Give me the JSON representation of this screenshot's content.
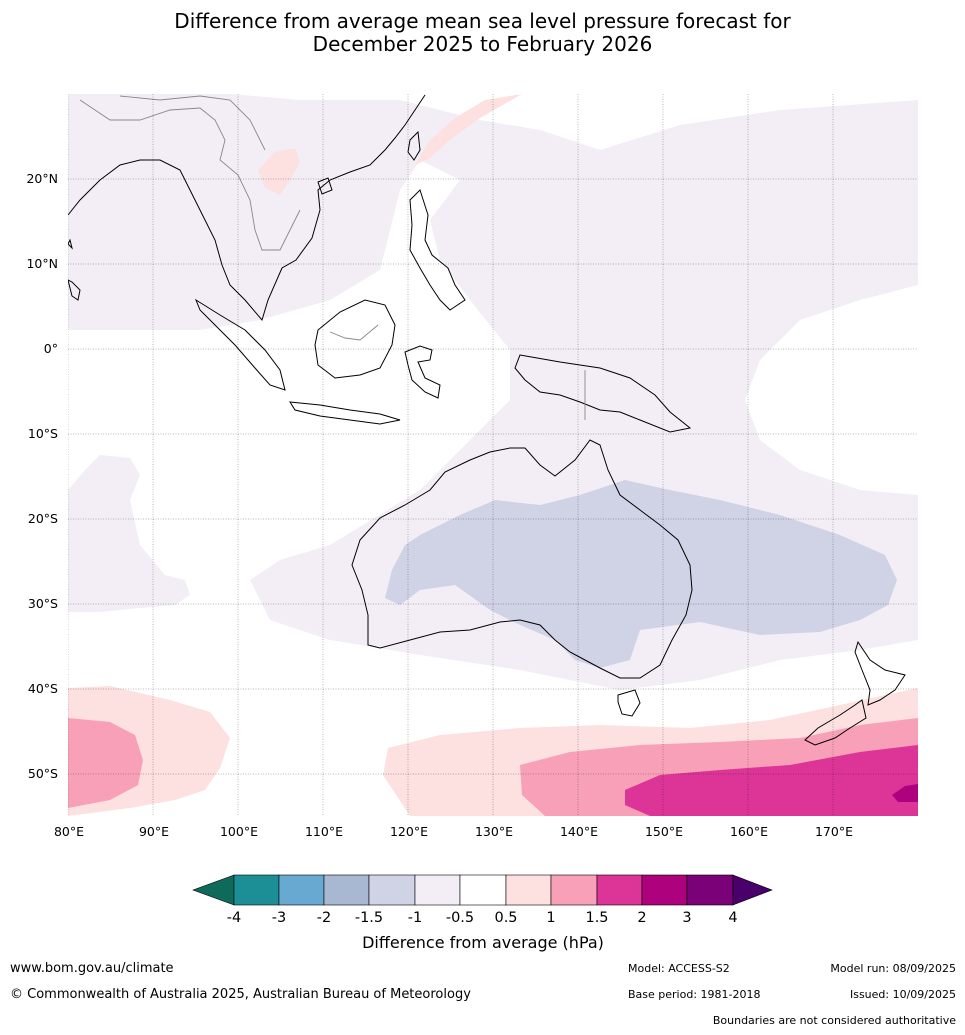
{
  "title": {
    "line1": "Difference from average mean sea level pressure forecast for",
    "line2": "December 2025 to February 2026"
  },
  "map": {
    "lat_labels": [
      "20°N",
      "10°N",
      "0°",
      "10°S",
      "20°S",
      "30°S",
      "40°S",
      "50°S"
    ],
    "lon_labels": [
      "80°E",
      "90°E",
      "100°E",
      "110°E",
      "120°E",
      "130°E",
      "140°E",
      "150°E",
      "160°E",
      "170°E"
    ]
  },
  "colorbar": {
    "ticks": [
      "-4",
      "-3",
      "-2",
      "-1.5",
      "-1",
      "-0.5",
      "0.5",
      "1",
      "1.5",
      "2",
      "3",
      "4"
    ],
    "colors": [
      "#0e6b5c",
      "#1c8f96",
      "#67a9d0",
      "#a8b8d2",
      "#d0d2e6",
      "#f3eef6",
      "#ffffff",
      "#fde0e0",
      "#f8a0b8",
      "#dd3497",
      "#ae017e",
      "#7a0177",
      "#49006a"
    ],
    "label": "Difference from average (hPa)"
  },
  "footer": {
    "website": "www.bom.gov.au/climate",
    "copyright": "© Commonwealth of Australia 2025, Australian Bureau of Meteorology",
    "model": "Model: ACCESS-S2",
    "base_period": "Base period: 1981-2018",
    "model_run": "Model run: 08/09/2025",
    "issued": "Issued: 10/09/2025",
    "disclaimer": "Boundaries are not considered authoritative"
  }
}
